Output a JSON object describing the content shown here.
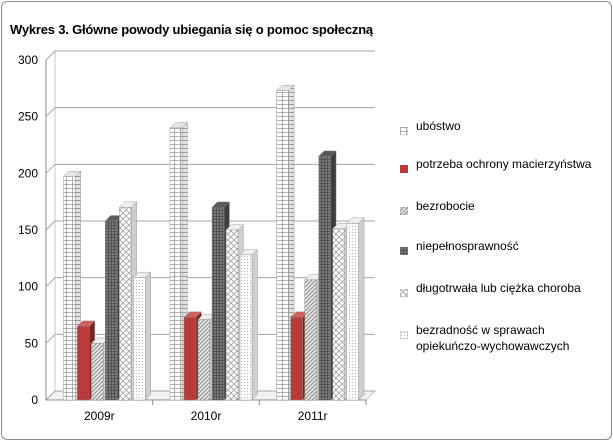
{
  "chart_data": {
    "type": "bar",
    "title": "Wykres 3. Główne powody ubiegania się o pomoc społeczną",
    "xlabel": "",
    "ylabel": "",
    "categories": [
      "2009r",
      "2010r",
      "2011r"
    ],
    "ylim": [
      0,
      300
    ],
    "yticks": [
      0,
      50,
      100,
      150,
      200,
      250,
      300
    ],
    "grid": true,
    "legend_position": "right",
    "three_d": true,
    "series": [
      {
        "name": "ubóstwo",
        "values": [
          197,
          240,
          273
        ],
        "pattern": "grid-light",
        "color": "#c8c8c8"
      },
      {
        "name": "potrzeba ochrony macierzyństwa",
        "values": [
          65,
          73,
          73
        ],
        "pattern": "solid",
        "color": "#b83a3a"
      },
      {
        "name": "bezrobocie",
        "values": [
          50,
          71,
          106
        ],
        "pattern": "diagonal",
        "color": "#a8a8a8"
      },
      {
        "name": "niepełnosprawność",
        "values": [
          158,
          170,
          215
        ],
        "pattern": "dense-grid",
        "color": "#6a6a6a"
      },
      {
        "name": "długotrwała lub ciężka choroba",
        "values": [
          170,
          150,
          151
        ],
        "pattern": "zigzag",
        "color": "#d4d4d4"
      },
      {
        "name": "bezradność w sprawach opiekuńczo-wychowawczych",
        "values": [
          108,
          128,
          156
        ],
        "pattern": "dots",
        "color": "#e6e6e6"
      }
    ]
  }
}
